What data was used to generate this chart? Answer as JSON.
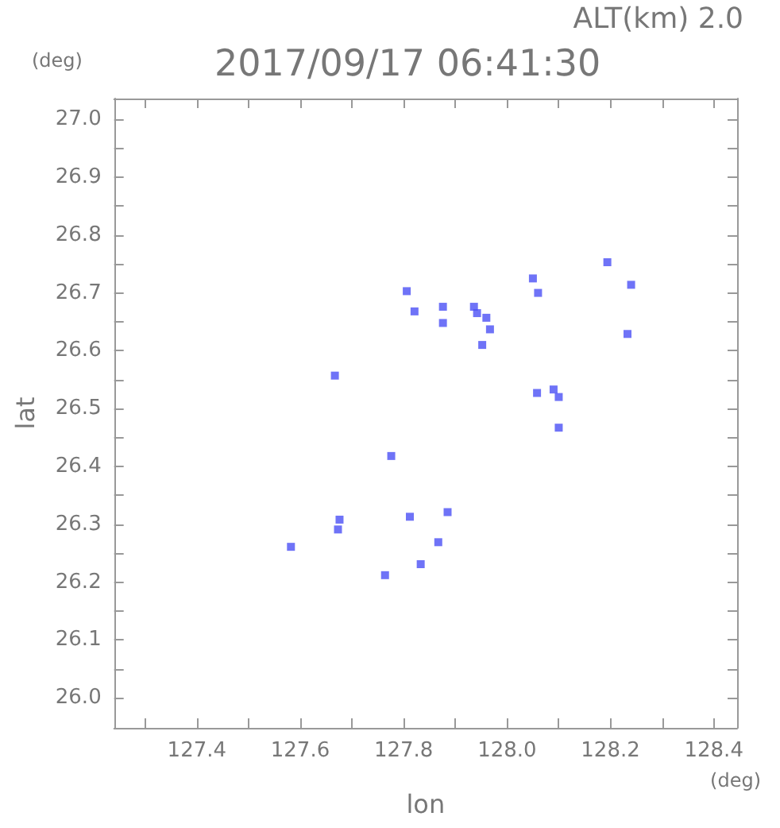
{
  "chart_data": {
    "type": "scatter",
    "title": "2017/09/17 06:41:30",
    "subtitle": "ALT(km) 2.0",
    "xlabel": "lon",
    "ylabel": "lat",
    "annotations": [
      "(deg)",
      "(deg)"
    ],
    "marker": "square",
    "grid": false,
    "series": [
      {
        "color": "#4b50f5",
        "x": [
          127.806,
          127.821,
          127.876,
          127.876,
          127.936,
          127.942,
          127.96,
          127.967,
          127.952,
          128.05,
          128.06,
          128.194,
          128.24,
          128.233,
          127.667,
          128.058,
          128.09,
          128.1,
          128.1,
          127.776,
          127.676,
          127.673,
          127.582,
          127.812,
          127.885,
          127.867,
          127.833,
          127.764
        ],
        "values": [
          26.703,
          26.668,
          26.676,
          26.648,
          26.676,
          26.665,
          26.657,
          26.637,
          26.61,
          26.725,
          26.7,
          26.753,
          26.714,
          26.629,
          26.557,
          26.527,
          26.533,
          26.52,
          26.467,
          26.418,
          26.308,
          26.291,
          26.261,
          26.313,
          26.321,
          26.269,
          26.231,
          26.212
        ]
      }
    ],
    "xlim": [
      127.24,
      128.445
    ],
    "ylim": [
      25.948,
      27.036
    ],
    "xticks": [
      {
        "value": 127.3,
        "label": null
      },
      127.4,
      {
        "value": 127.5,
        "label": null
      },
      127.6,
      {
        "value": 127.7,
        "label": null
      },
      127.8,
      {
        "value": 127.9,
        "label": null
      },
      {
        "value": 128,
        "label": "128.0"
      },
      {
        "value": 128.1,
        "label": null
      },
      128.2,
      {
        "value": 128.3,
        "label": null
      },
      128.4
    ],
    "yticks": [
      {
        "value": 26,
        "label": "26.0"
      },
      {
        "value": 26.05,
        "label": null
      },
      26.1,
      {
        "value": 26.15,
        "label": null
      },
      26.2,
      {
        "value": 26.25,
        "label": null
      },
      26.3,
      {
        "value": 26.35,
        "label": null
      },
      26.4,
      {
        "value": 26.45,
        "label": null
      },
      26.5,
      {
        "value": 26.55,
        "label": null
      },
      26.6,
      {
        "value": 26.65,
        "label": null
      },
      26.7,
      {
        "value": 26.75,
        "label": null
      },
      26.8,
      {
        "value": 26.85,
        "label": null
      },
      26.9,
      {
        "value": 26.95,
        "label": null
      },
      {
        "value": 27,
        "label": "27.0"
      }
    ]
  }
}
